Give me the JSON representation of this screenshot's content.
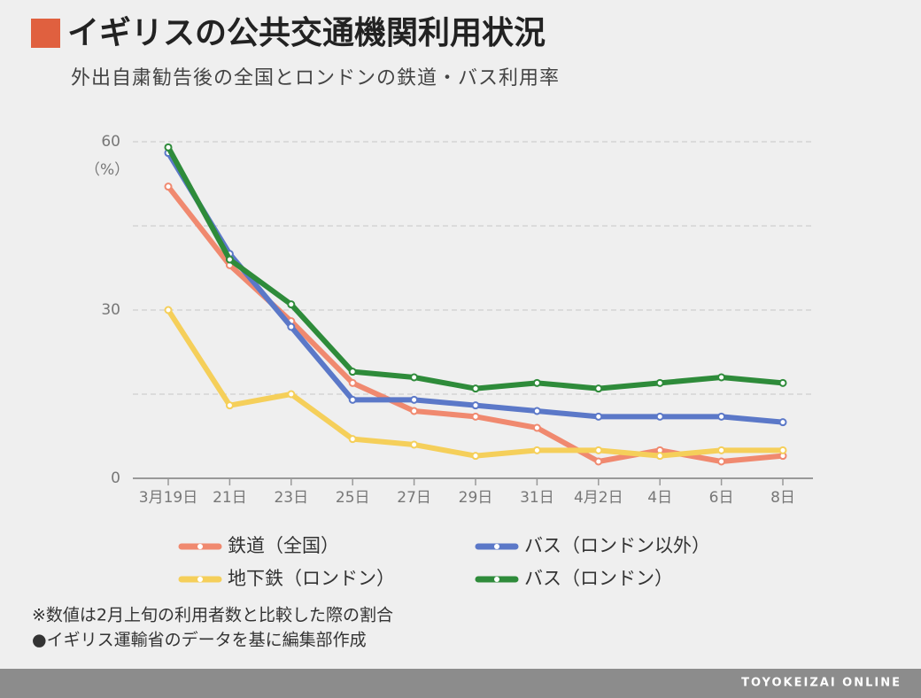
{
  "chart_data": {
    "type": "line",
    "title": "イギリスの公共交通機関利用状況",
    "subtitle": "外出自粛勧告後の全国とロンドンの鉄道・バス利用率",
    "y_label": "（%）",
    "categories": [
      "3月19日",
      "21日",
      "23日",
      "25日",
      "27日",
      "29日",
      "31日",
      "4月2日",
      "4日",
      "6日",
      "8日"
    ],
    "series": [
      {
        "name": "鉄道（全国）",
        "color": "#f0896f",
        "values": [
          52,
          38,
          28,
          17,
          12,
          11,
          9,
          3,
          5,
          3,
          4
        ]
      },
      {
        "name": "バス（ロンドン以外）",
        "color": "#5b78c8",
        "values": [
          58,
          40,
          27,
          14,
          14,
          13,
          12,
          11,
          11,
          11,
          10
        ]
      },
      {
        "name": "地下鉄（ロンドン）",
        "color": "#f5cf5a",
        "values": [
          30,
          13,
          15,
          7,
          6,
          4,
          5,
          5,
          4,
          5,
          5
        ]
      },
      {
        "name": "バス（ロンドン）",
        "color": "#2e8b3a",
        "values": [
          59,
          39,
          31,
          19,
          18,
          16,
          17,
          16,
          17,
          18,
          17
        ]
      }
    ],
    "ylim": [
      0,
      60
    ],
    "yticks": [
      0,
      {
        "value": 15,
        "label": null
      },
      30,
      {
        "value": 45,
        "label": null
      },
      60
    ],
    "grid": true
  },
  "notes": [
    "※数値は2月上旬の利用者数と比較した際の割合",
    "●イギリス運輸省のデータを基に編集部作成"
  ],
  "footer": "TOYOKEIZAI ONLINE"
}
